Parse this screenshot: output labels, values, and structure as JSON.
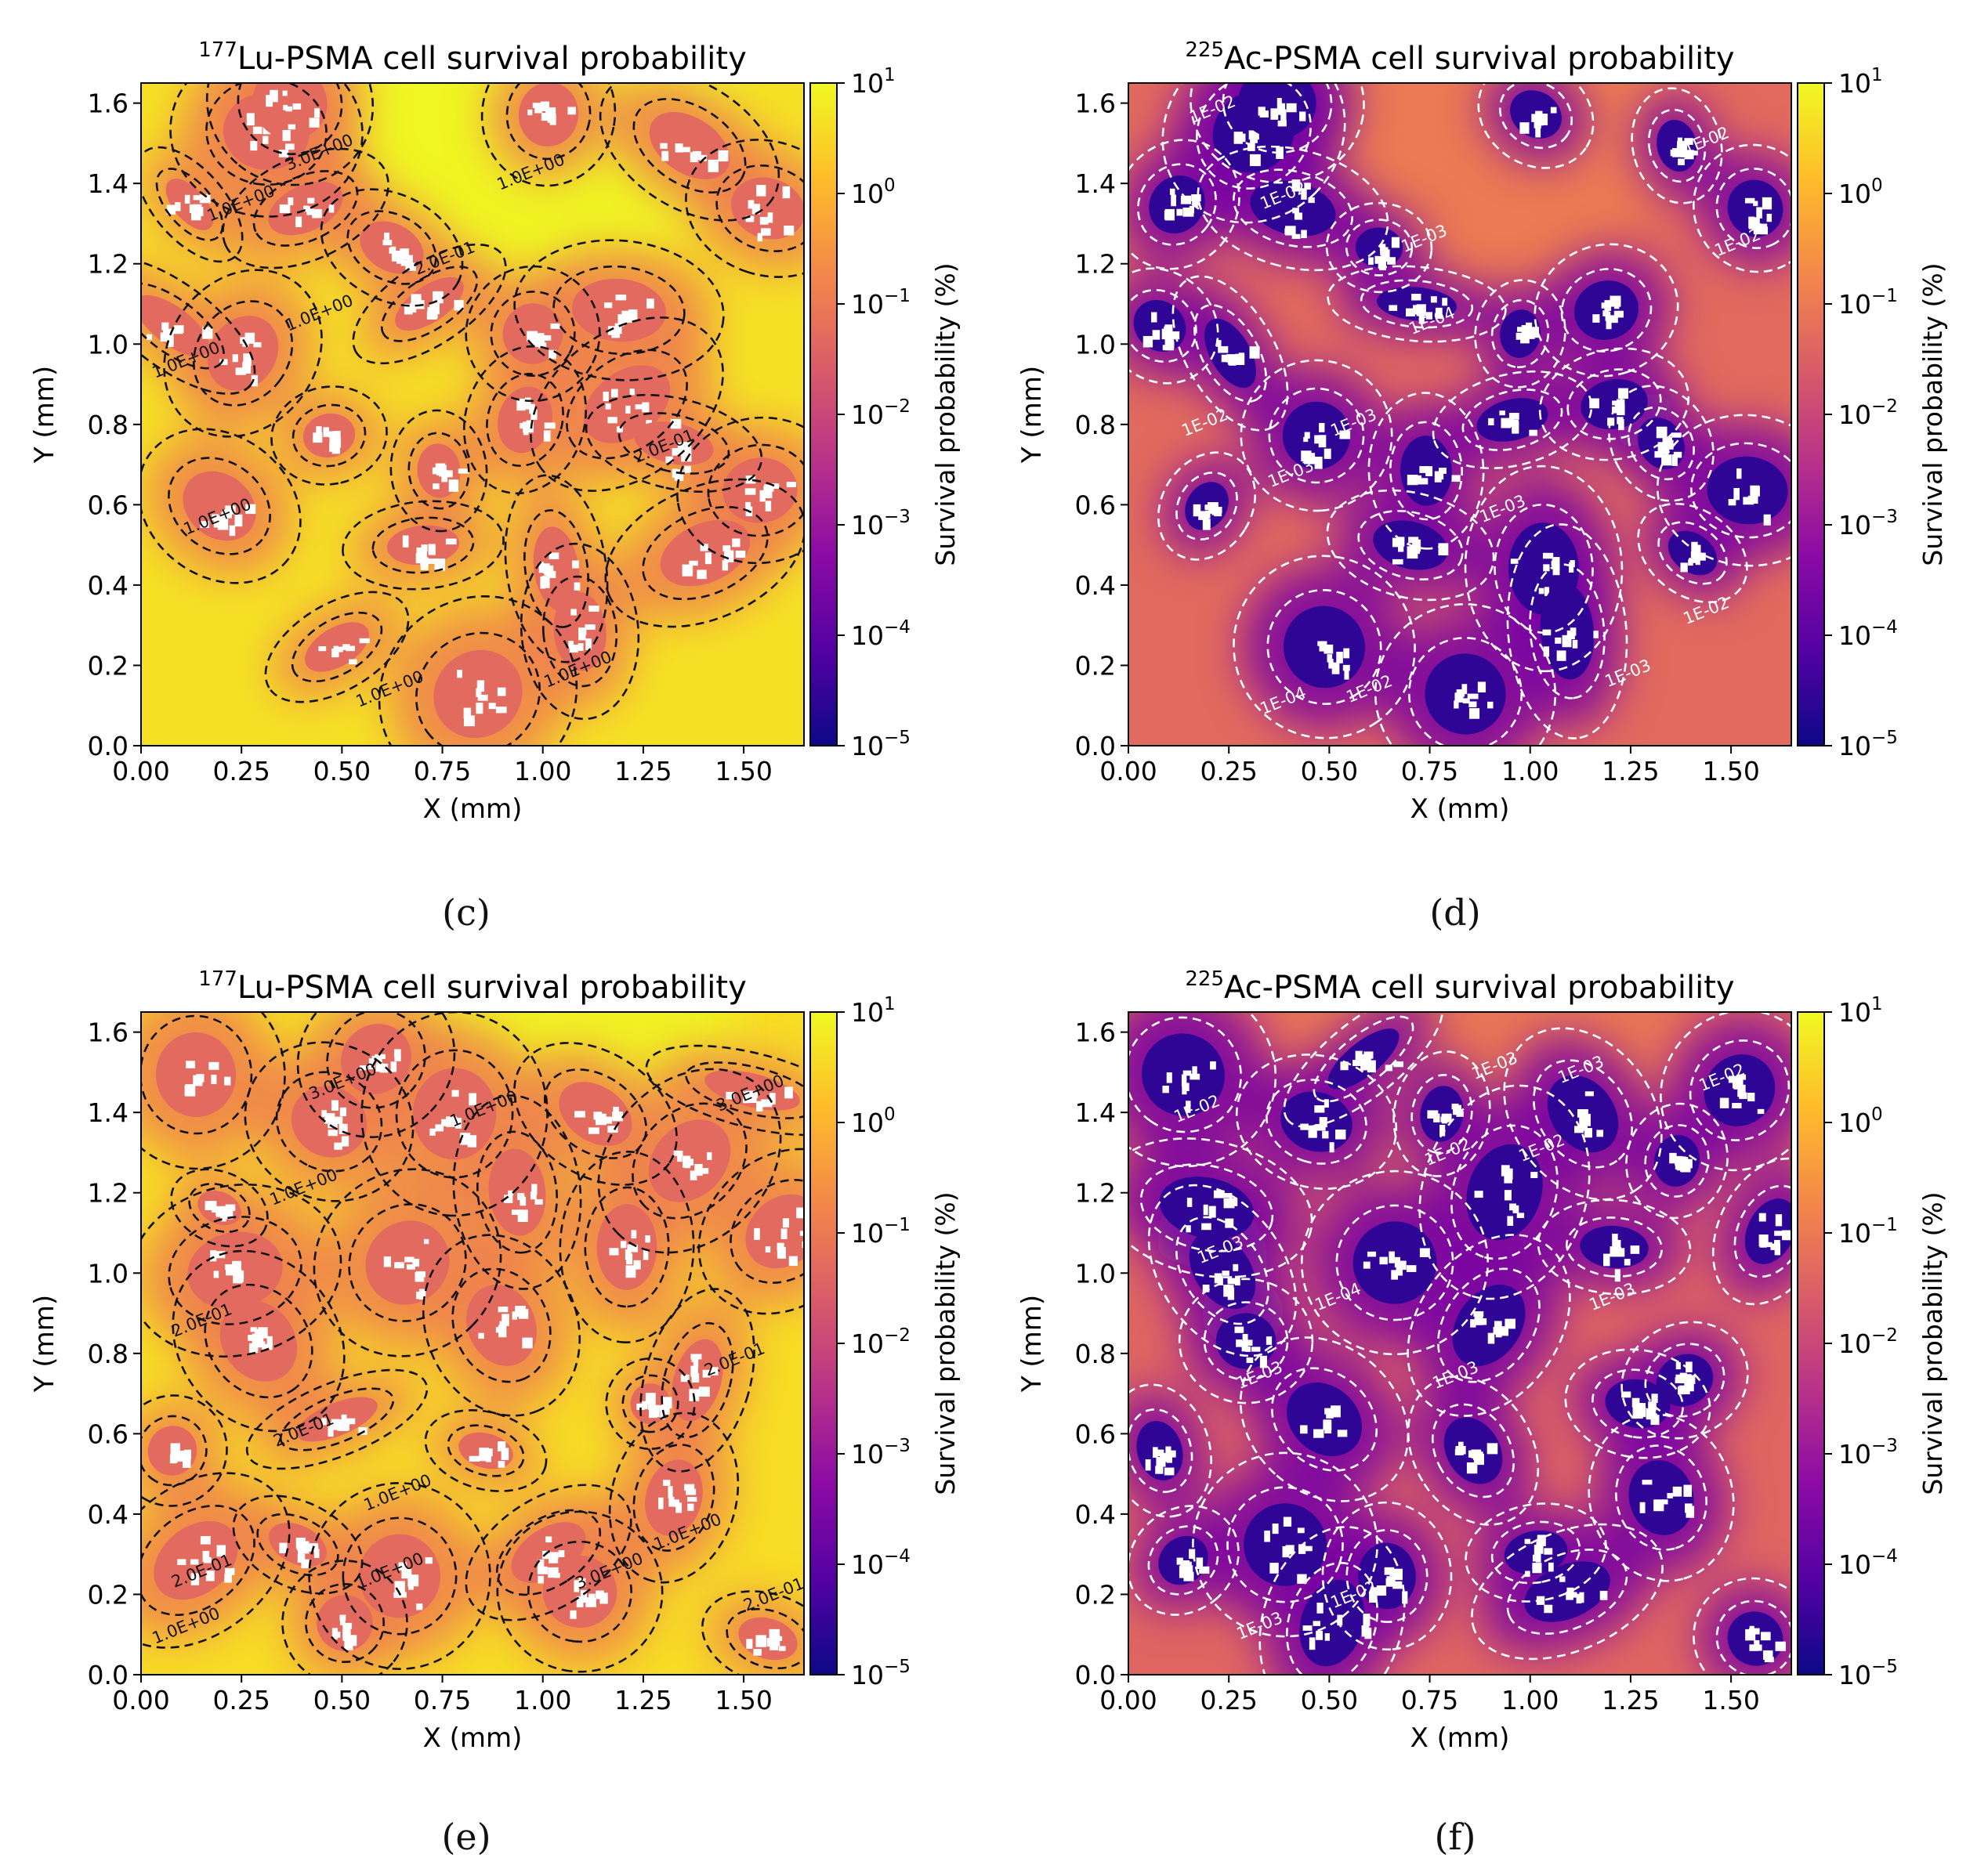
{
  "captions": [
    "(c)",
    "(d)",
    "(e)",
    "(f)"
  ],
  "caption_letters": [
    "c",
    "d",
    "e",
    "f"
  ],
  "colorbar": {
    "label": "Survival probability (%)",
    "ticks": [
      "10^1",
      "10^0",
      "10^-1",
      "10^-2",
      "10^-3",
      "10^-4",
      "10^-5"
    ],
    "tick_exponents": [
      1,
      0,
      -1,
      -2,
      -3,
      -4,
      -5
    ],
    "colormap": "plasma",
    "colors": [
      "#0d0887",
      "#5302a3",
      "#8b0aa5",
      "#b83289",
      "#db5c68",
      "#f48849",
      "#febd2a",
      "#f0f921"
    ]
  },
  "chart_data": [
    {
      "panel": "c",
      "type": "heatmap",
      "title_sup": "177",
      "title": "Lu-PSMA cell survival probability",
      "xlabel": "X (mm)",
      "ylabel": "Y (mm)",
      "xlim": [
        0,
        1.65
      ],
      "ylim": [
        0,
        1.65
      ],
      "xticks": [
        "0.00",
        "0.25",
        "0.50",
        "0.75",
        "1.00",
        "1.25",
        "1.50"
      ],
      "yticks": [
        "0.0",
        "0.2",
        "0.4",
        "0.6",
        "0.8",
        "1.0",
        "1.2",
        "1.4",
        "1.6"
      ],
      "background_log10": 0.65,
      "contour_color": "#111111",
      "contour_labels": [
        "1.0E+00",
        "3.0E+00",
        "1.0E+00",
        "2.0E-01",
        "1.0E+00",
        "1.0E+00",
        "2.0E-01",
        "1.0E+00",
        "1.0E+00",
        "1.0E+00"
      ]
    },
    {
      "panel": "d",
      "type": "heatmap",
      "title_sup": "225",
      "title": "Ac-PSMA cell survival probability",
      "xlabel": "X (mm)",
      "ylabel": "Y (mm)",
      "xlim": [
        0,
        1.65
      ],
      "ylim": [
        0,
        1.65
      ],
      "xticks": [
        "0.00",
        "0.25",
        "0.50",
        "0.75",
        "1.00",
        "1.25",
        "1.50"
      ],
      "yticks": [
        "0.0",
        "0.2",
        "0.4",
        "0.6",
        "0.8",
        "1.0",
        "1.2",
        "1.4",
        "1.6"
      ],
      "background_log10": -1.3,
      "contour_color": "#ffffff",
      "contour_labels": [
        "1E-02",
        "1E-02",
        "1E-02",
        "1E-02",
        "1E-03",
        "1E-03",
        "1E-02",
        "1E-03",
        "1E-04",
        "1E-03",
        "1E-02",
        "1E-03",
        "1E-02",
        "1E-04"
      ]
    },
    {
      "panel": "e",
      "type": "heatmap",
      "title_sup": "177",
      "title": "Lu-PSMA cell survival probability",
      "xlabel": "X (mm)",
      "ylabel": "Y (mm)",
      "xlim": [
        0,
        1.65
      ],
      "ylim": [
        0,
        1.65
      ],
      "xticks": [
        "0.00",
        "0.25",
        "0.50",
        "0.75",
        "1.00",
        "1.25",
        "1.50"
      ],
      "yticks": [
        "0.0",
        "0.2",
        "0.4",
        "0.6",
        "0.8",
        "1.0",
        "1.2",
        "1.4",
        "1.6"
      ],
      "background_log10": 0.6,
      "contour_color": "#111111",
      "contour_labels": [
        "3.0E+00",
        "1.0E+00",
        "3.0E+00",
        "1.0E+00",
        "2.0E-01",
        "2.0E-01",
        "2.0E-01",
        "1.0E+00",
        "1.0E+00",
        "3.0E+00",
        "1.0E+00",
        "2.0E-01",
        "2.0E-01",
        "1.0E+00"
      ]
    },
    {
      "panel": "f",
      "type": "heatmap",
      "title_sup": "225",
      "title": "Ac-PSMA cell survival probability",
      "xlabel": "X (mm)",
      "ylabel": "Y (mm)",
      "xlim": [
        0,
        1.65
      ],
      "ylim": [
        0,
        1.65
      ],
      "xticks": [
        "0.00",
        "0.25",
        "0.50",
        "0.75",
        "1.00",
        "1.25",
        "1.50"
      ],
      "yticks": [
        "0.0",
        "0.2",
        "0.4",
        "0.6",
        "0.8",
        "1.0",
        "1.2",
        "1.4",
        "1.6"
      ],
      "background_log10": -1.4,
      "contour_color": "#ffffff",
      "contour_labels": [
        "1E-03",
        "1E-03",
        "1E-02",
        "1E-02",
        "1E-02",
        "1E-02",
        "1E-03",
        "1E-03",
        "1E-04",
        "1E-03",
        "1E-03",
        "1E-03",
        "1E-02"
      ]
    }
  ]
}
